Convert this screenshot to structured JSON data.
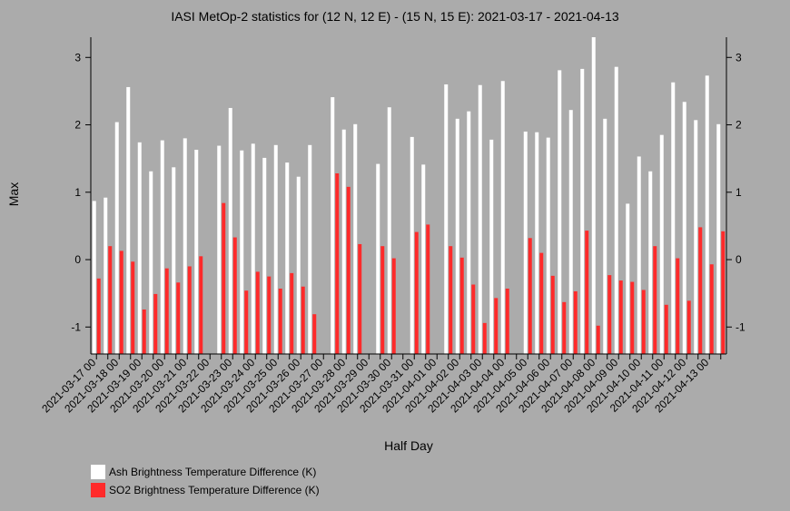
{
  "chart_data": {
    "type": "bar",
    "title": "IASI MetOp-2 statistics for (12 N, 12 E) - (15 N, 15 E): 2021-03-17 - 2021-04-13",
    "xlabel": "Half Day",
    "ylabel": "Max",
    "ylim": [
      -1.4,
      3.3
    ],
    "yticks": [
      -1,
      0,
      1,
      2,
      3
    ],
    "xtick_labels": [
      "2021-03-17 00",
      "2021-03-18 00",
      "2021-03-19 00",
      "2021-03-20 00",
      "2021-03-21 00",
      "2021-03-22 00",
      "2021-03-23 00",
      "2021-03-24 00",
      "2021-03-25 00",
      "2021-03-26 00",
      "2021-03-27 00",
      "2021-03-28 00",
      "2021-03-29 00",
      "2021-03-30 00",
      "2021-03-31 00",
      "2021-04-01 00",
      "2021-04-02 00",
      "2021-04-03 00",
      "2021-04-04 00",
      "2021-04-05 00",
      "2021-04-06 00",
      "2021-04-07 00",
      "2021-04-08 00",
      "2021-04-09 00",
      "2021-04-10 00",
      "2021-04-11 00",
      "2021-04-12 00",
      "2021-04-13 00"
    ],
    "legend_placement": "bottom-left",
    "series": [
      {
        "name": "Ash Brightness Temperature Difference (K)",
        "color": "#ffffff",
        "values": [
          0.87,
          0.92,
          2.04,
          2.56,
          1.74,
          1.31,
          1.77,
          1.37,
          1.8,
          1.63,
          null,
          1.69,
          2.25,
          1.62,
          1.72,
          1.51,
          1.7,
          1.44,
          1.23,
          1.7,
          null,
          2.41,
          1.93,
          2.01,
          null,
          1.42,
          2.26,
          null,
          1.82,
          1.41,
          null,
          2.6,
          2.09,
          2.2,
          2.59,
          1.78,
          2.65,
          null,
          1.9,
          1.89,
          1.81,
          2.81,
          2.22,
          2.83,
          3.3,
          2.09,
          2.86,
          0.83,
          1.53,
          1.31,
          1.85,
          2.63,
          2.34,
          2.07,
          2.73,
          2.01
        ]
      },
      {
        "name": "SO2 Brightness Temperature Difference (K)",
        "color": "#ff2a2a",
        "values": [
          -0.28,
          0.2,
          0.13,
          -0.03,
          -0.74,
          -0.51,
          -0.13,
          -0.34,
          -0.1,
          0.05,
          null,
          0.84,
          0.33,
          -0.46,
          -0.18,
          -0.25,
          -0.43,
          -0.2,
          -0.4,
          -0.81,
          null,
          1.28,
          1.08,
          0.23,
          null,
          0.2,
          0.02,
          null,
          0.41,
          0.52,
          null,
          0.2,
          0.03,
          -0.37,
          -0.94,
          -0.57,
          -0.43,
          null,
          0.32,
          0.1,
          -0.24,
          -0.63,
          -0.47,
          0.43,
          -0.98,
          -0.23,
          -0.31,
          -0.33,
          -0.45,
          0.2,
          -0.67,
          0.02,
          -0.61,
          0.48,
          -0.07,
          0.42
        ]
      }
    ]
  }
}
